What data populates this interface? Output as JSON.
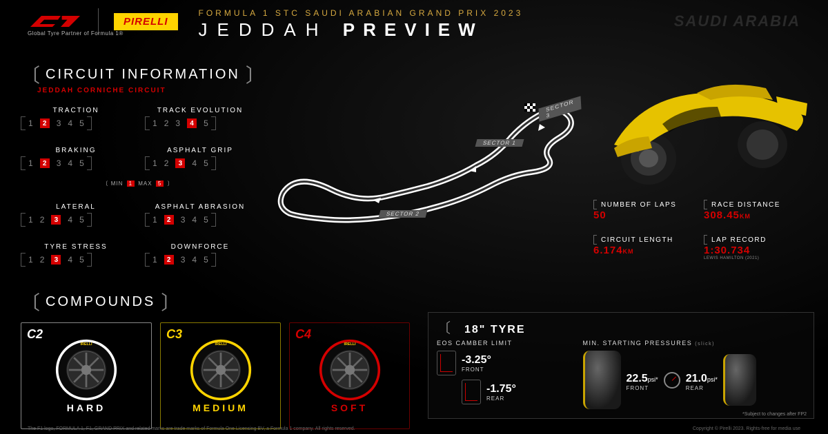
{
  "header": {
    "pirelli": "PIRELLI",
    "tagline": "Global Tyre Partner of Formula 1®",
    "event_line": "FORMULA 1 STC SAUDI ARABIAN GRAND PRIX 2023",
    "city": "JEDDAH",
    "preview": "PREVIEW",
    "country": "SAUDI ARABIA"
  },
  "circuit": {
    "heading": "CIRCUIT INFORMATION",
    "subheading": "JEDDAH CORNICHE CIRCUIT",
    "minmax": "MIN 1  MAX 5",
    "ratings": [
      {
        "label": "TRACTION",
        "value": 2
      },
      {
        "label": "TRACK EVOLUTION",
        "value": 4
      },
      {
        "label": "BRAKING",
        "value": 2
      },
      {
        "label": "ASPHALT GRIP",
        "value": 3
      },
      {
        "label": "LATERAL",
        "value": 3
      },
      {
        "label": "ASPHALT ABRASION",
        "value": 2
      },
      {
        "label": "TYRE STRESS",
        "value": 3
      },
      {
        "label": "DOWNFORCE",
        "value": 2
      }
    ]
  },
  "sectors": [
    "SECTOR 1",
    "SECTOR 2",
    "SECTOR 3"
  ],
  "stats": [
    {
      "label": "NUMBER OF LAPS",
      "value": "50",
      "unit": ""
    },
    {
      "label": "RACE DISTANCE",
      "value": "308.45",
      "unit": "KM"
    },
    {
      "label": "CIRCUIT LENGTH",
      "value": "6.174",
      "unit": "KM"
    },
    {
      "label": "LAP RECORD",
      "value": "1:30.734",
      "unit": "",
      "sub": "LEWIS HAMILTON (2021)"
    }
  ],
  "compounds": {
    "heading": "COMPOUNDS",
    "tyres": [
      {
        "code": "C2",
        "name": "HARD",
        "color": "#ffffff",
        "border": "#888888"
      },
      {
        "code": "C3",
        "name": "MEDIUM",
        "color": "#ffd400",
        "border": "#8a7a00"
      },
      {
        "code": "C4",
        "name": "SOFT",
        "color": "#d40000",
        "border": "#6a0000"
      }
    ]
  },
  "tyre18": {
    "heading": "18\" TYRE",
    "camber_label": "EOS CAMBER LIMIT",
    "camber": [
      {
        "val": "-3.25°",
        "pos": "FRONT"
      },
      {
        "val": "-1.75°",
        "pos": "REAR"
      }
    ],
    "press_label": "MIN. STARTING PRESSURES",
    "press_note": "(slick)",
    "press": [
      {
        "val": "22.5",
        "unit": "psi*",
        "pos": "FRONT"
      },
      {
        "val": "21.0",
        "unit": "psi*",
        "pos": "REAR"
      }
    ],
    "footnote": "*Subject to changes after FP2"
  },
  "footer": {
    "left": "The F1 logo, FORMULA 1, F1, GRAND PRIX and related marks are trade marks of Formula One Licensing BV, a Formula 1 company. All rights reserved.",
    "right": "Copyright © Pirelli 2023. Rights-free for media use"
  },
  "colors": {
    "red": "#d40000",
    "yellow": "#ffd400",
    "gold": "#d6a940",
    "bg": "#000000"
  }
}
